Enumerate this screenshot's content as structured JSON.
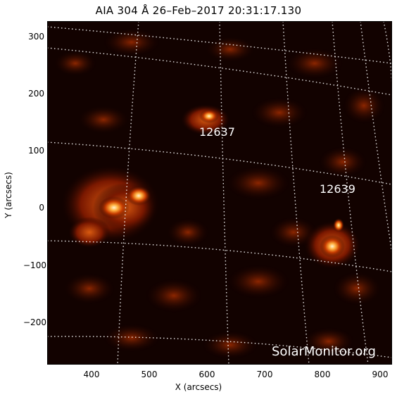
{
  "title": "AIA 304 Å 26–Feb–2017 20:31:17.130",
  "axes": {
    "x_label": "X (arcsecs)",
    "y_label": "Y (arcsecs)",
    "x_ticks": [
      "400",
      "500",
      "600",
      "700",
      "800",
      "900"
    ],
    "y_ticks": [
      "300",
      "200",
      "100",
      "0",
      "−100",
      "−200"
    ]
  },
  "regions": [
    {
      "label": "12637"
    },
    {
      "label": "12639"
    }
  ],
  "watermark": "SolarMonitor.org",
  "colors": {
    "frame": "#000000",
    "background": "#ffffff",
    "solar_dark": "#120200",
    "solar_bright": "#ffb040",
    "grid": "#ffffff"
  }
}
